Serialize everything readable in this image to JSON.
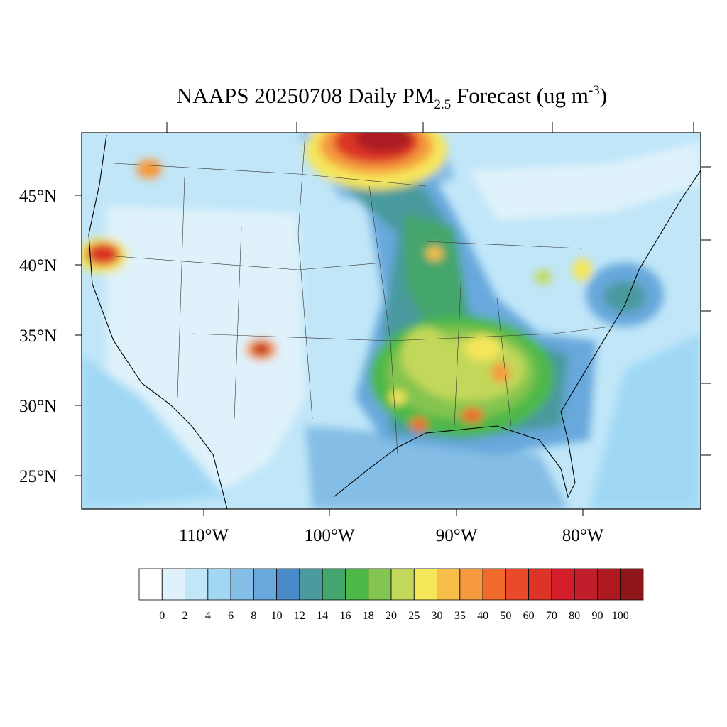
{
  "header": {
    "title_parts": [
      "NAAPS 20250708 Daily PM",
      "2.5",
      " Forecast (ug m",
      "-3",
      ")"
    ]
  },
  "map": {
    "lat_labels": [
      "45°N",
      "40°N",
      "35°N",
      "30°N",
      "25°N"
    ],
    "lon_labels": [
      "110°W",
      "100°W",
      "90°W",
      "80°W"
    ]
  },
  "colorbar": {
    "levels": [
      0,
      2,
      4,
      6,
      8,
      10,
      12,
      14,
      16,
      18,
      20,
      25,
      30,
      35,
      40,
      50,
      60,
      70,
      80,
      90,
      100
    ],
    "colors": [
      "#ffffff",
      "#dff2fb",
      "#c0e6f8",
      "#a0d8f4",
      "#84bde5",
      "#68a8dc",
      "#4a8ac8",
      "#4a9a9e",
      "#44a66c",
      "#4db848",
      "#84c450",
      "#c2d85a",
      "#f5e65a",
      "#f7be4a",
      "#f59a3e",
      "#f06a2c",
      "#e84a2a",
      "#dc3426",
      "#d21e2a",
      "#bf1e2a",
      "#ac1a20",
      "#8e1618"
    ]
  }
}
